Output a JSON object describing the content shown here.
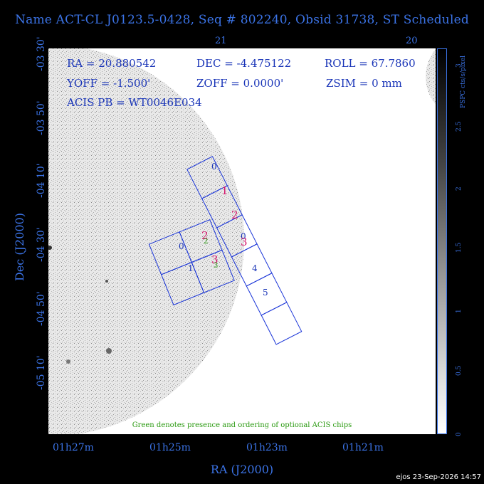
{
  "title": "Name ACT-CL J0123.5-0428, Seq # 802240, Obsid 31738, ST Scheduled",
  "info": {
    "ra": "RA = 20.880542",
    "dec": "DEC = -4.475122",
    "roll": "ROLL = 67.7860",
    "yoff": "YOFF =  -1.500'",
    "zoff": "ZOFF =  0.0000'",
    "zsim": "ZSIM = 0 mm",
    "acis_pb": "ACIS PB = WT0046E034"
  },
  "axes": {
    "x_label": "RA (J2000)",
    "y_label": "Dec (J2000)",
    "ra_ticks": [
      "01h27m",
      "01h25m",
      "01h23m",
      "01h21m"
    ],
    "dec_ticks": [
      "-03 30'",
      "-03 50'",
      "-04 10'",
      "-04 30'",
      "-04 50'",
      "-05 10'"
    ],
    "top_ticks": [
      "21",
      "20"
    ]
  },
  "colorbar": {
    "label": "PSPC cts/s/pixel",
    "ticks": [
      "0",
      "0.5",
      "1",
      "1.5",
      "2",
      "2.5",
      "3"
    ]
  },
  "chips": {
    "left": [
      "0",
      "1",
      "2",
      "3"
    ],
    "strip": [
      "0",
      "1",
      "2",
      "3",
      "4",
      "5"
    ],
    "optional": [
      "2",
      "3"
    ]
  },
  "footnote": "Green denotes presence and ordering of optional ACIS chips",
  "stamp": "ejos 23-Sep-2026 14:57"
}
